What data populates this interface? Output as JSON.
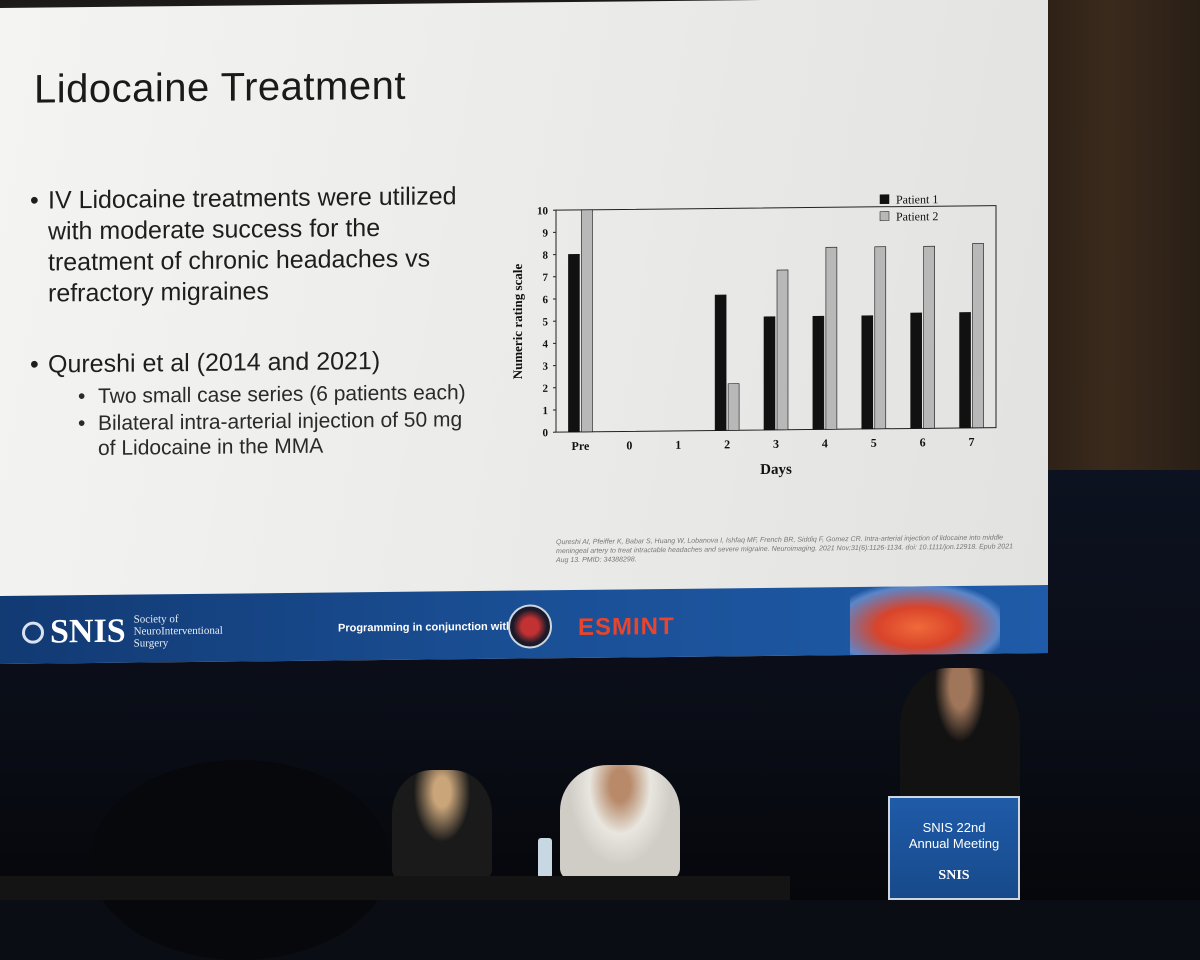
{
  "slide": {
    "title": "Lidocaine Treatment",
    "bullet1": "IV Lidocaine treatments were utilized with moderate success for the treatment of chronic headaches vs refractory migraines",
    "bullet2": "Qureshi et al (2014 and 2021)",
    "sub1": "Two small case series (6 patients each)",
    "sub2": "Bilateral intra-arterial injection of 50 mg of Lidocaine in the MMA",
    "citation": "Qureshi AI, Pfeiffer K, Babar S, Huang W, Lobanova I, Ishfaq MF, French BR, Siddiq F, Gomez CR. Intra-arterial injection of lidocaine into middle meningeal artery to treat intractable headaches and severe migraine. Neuroimaging. 2021 Nov;31(6):1126-1134. doi: 10.1111/jon.12918. Epub 2021 Aug 13. PMID: 34388298."
  },
  "chart_data": {
    "type": "bar",
    "categories": [
      "Pre",
      "0",
      "1",
      "2",
      "3",
      "4",
      "5",
      "6",
      "7"
    ],
    "series": [
      {
        "name": "Patient 1",
        "values": [
          8.0,
          0,
          0,
          6.1,
          5.1,
          5.1,
          5.1,
          5.2,
          5.2
        ],
        "color": "#111111"
      },
      {
        "name": "Patient 2",
        "values": [
          10.0,
          0,
          0,
          2.1,
          7.2,
          8.2,
          8.2,
          8.2,
          8.3
        ],
        "color": "#b8b8b8"
      }
    ],
    "xlabel": "Days",
    "ylabel": "Numeric rating scale",
    "ylim": [
      0,
      10
    ],
    "yticks": [
      "0",
      "1",
      "2",
      "3",
      "4",
      "5",
      "6",
      "7",
      "8",
      "9",
      "10"
    ],
    "legend_position": "top-right"
  },
  "banner": {
    "logo": "SNIS",
    "logo_full": [
      "Society of",
      "NeuroInterventional",
      "Surgery"
    ],
    "programming": "Programming in conjunction with:",
    "partner": "ESMINT"
  },
  "podium": {
    "title_line1": "SNIS 22nd",
    "title_line2": "Annual Meeting",
    "logo": "SNIS"
  }
}
